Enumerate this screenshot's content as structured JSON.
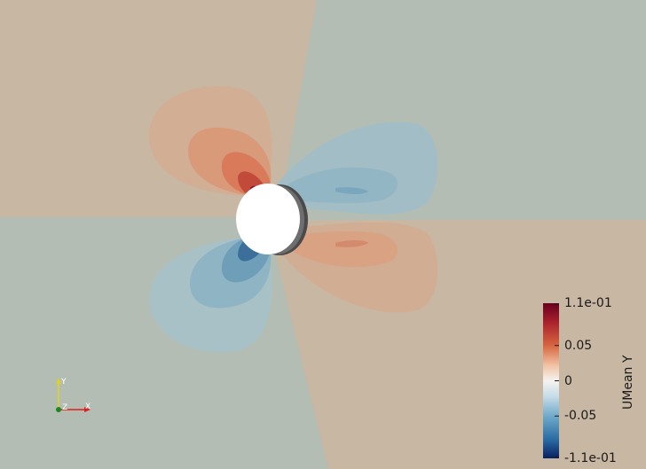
{
  "colorbar": {
    "title": "UMean Y",
    "ticks": [
      {
        "label": "1.1e-01",
        "value": 0.11
      },
      {
        "label": "0.05",
        "value": 0.05
      },
      {
        "label": "0",
        "value": 0
      },
      {
        "label": "-0.05",
        "value": -0.05
      },
      {
        "label": "-1.1e-01",
        "value": -0.11
      }
    ],
    "range": [
      -0.11,
      0.11
    ],
    "colormap": [
      "#08205e",
      "#2a6aa3",
      "#6fa9c8",
      "#c6dde8",
      "#f5f2ef",
      "#f1c2a3",
      "#d5643f",
      "#a8202c",
      "#67001f"
    ]
  },
  "orientation_axes": {
    "x_label": "X",
    "y_label": "Y",
    "z_label": "Z",
    "x_color": "#e21b1b",
    "y_color": "#e0d21c",
    "z_color": "#1a8a1a"
  },
  "scene": {
    "background_positive": "#c8b7a3",
    "background_negative": "#b4bdb3",
    "body_color": "#ffffff"
  }
}
